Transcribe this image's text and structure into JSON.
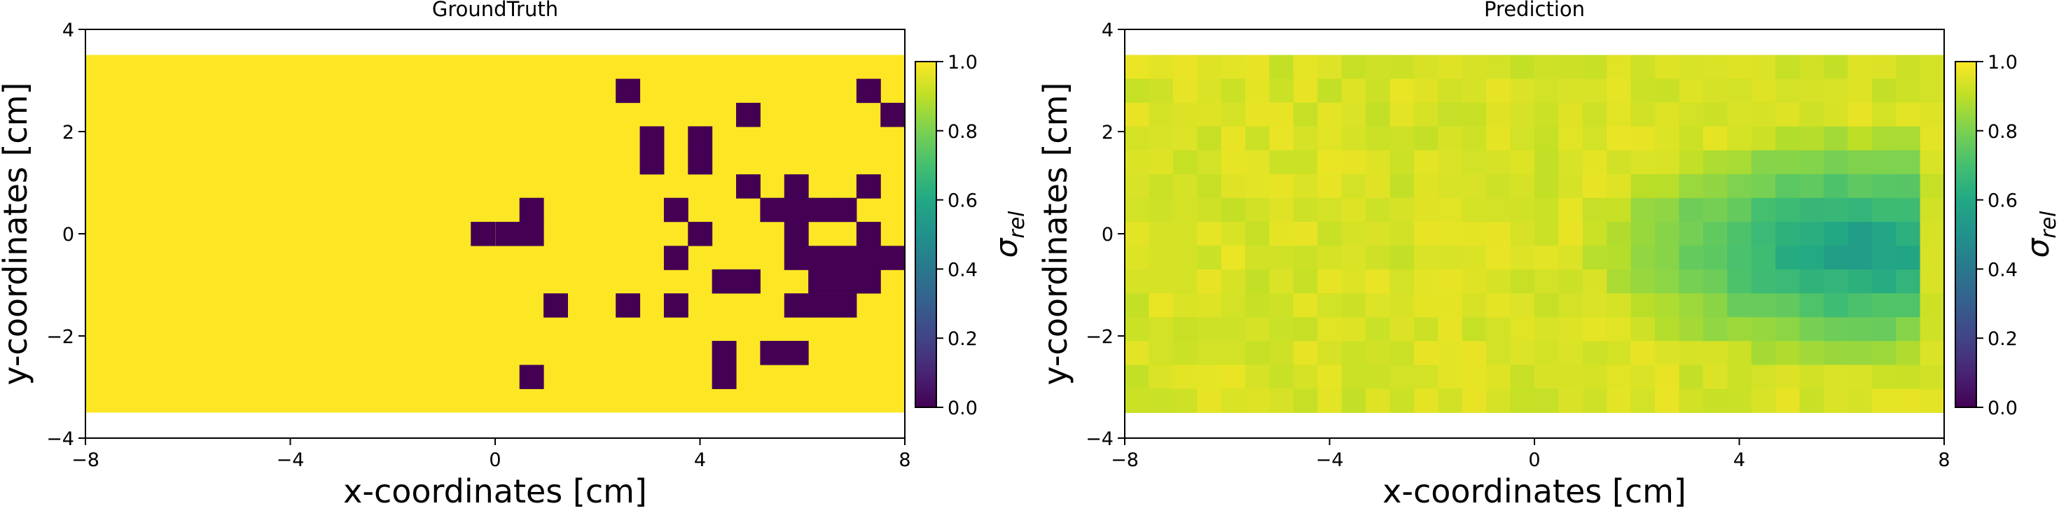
{
  "chart_data": [
    {
      "type": "heatmap",
      "title": "GroundTruth",
      "xlabel": "x-coordinates [cm]",
      "ylabel": "y-coordinates [cm]",
      "xlim": [
        -8,
        8
      ],
      "ylim": [
        -4,
        4
      ],
      "xticks": [
        "−8",
        "−4",
        "0",
        "4",
        "8"
      ],
      "yticks": [
        "−4",
        "−2",
        "0",
        "2",
        "4"
      ],
      "extent": {
        "x": [
          -8,
          8
        ],
        "y": [
          -3.5,
          3.5
        ]
      },
      "grid_cols": 34,
      "grid_rows": 15,
      "colormap": "viridis",
      "colorbar": {
        "label": "σrel",
        "range": [
          0,
          1
        ],
        "ticks": [
          "0.0",
          "0.2",
          "0.4",
          "0.6",
          "0.8",
          "1.0"
        ]
      },
      "background_value": 1.0,
      "cells": [
        {
          "x": 2.59,
          "y": 2.8,
          "value": 0.0
        },
        {
          "x": 7.29,
          "y": 2.8,
          "value": 0.0
        },
        {
          "x": 4.94,
          "y": 2.33,
          "value": 0.0
        },
        {
          "x": 7.76,
          "y": 2.33,
          "value": 0.0
        },
        {
          "x": 3.06,
          "y": 1.87,
          "value": 0.0
        },
        {
          "x": 4.0,
          "y": 1.87,
          "value": 0.0
        },
        {
          "x": 3.06,
          "y": 1.4,
          "value": 0.0
        },
        {
          "x": 4.0,
          "y": 1.4,
          "value": 0.0
        },
        {
          "x": 4.94,
          "y": 0.93,
          "value": 0.0
        },
        {
          "x": 5.88,
          "y": 0.93,
          "value": 0.0
        },
        {
          "x": 7.29,
          "y": 0.93,
          "value": 0.0
        },
        {
          "x": 0.71,
          "y": 0.47,
          "value": 0.0
        },
        {
          "x": 3.53,
          "y": 0.47,
          "value": 0.0
        },
        {
          "x": 5.41,
          "y": 0.47,
          "value": 0.0
        },
        {
          "x": 5.88,
          "y": 0.47,
          "value": 0.0
        },
        {
          "x": 6.35,
          "y": 0.47,
          "value": 0.0
        },
        {
          "x": 6.82,
          "y": 0.47,
          "value": 0.0
        },
        {
          "x": -0.24,
          "y": 0.0,
          "value": 0.0
        },
        {
          "x": 0.24,
          "y": 0.0,
          "value": 0.0
        },
        {
          "x": 0.71,
          "y": 0.0,
          "value": 0.0
        },
        {
          "x": 4.0,
          "y": 0.0,
          "value": 0.0
        },
        {
          "x": 5.88,
          "y": 0.0,
          "value": 0.0
        },
        {
          "x": 7.29,
          "y": 0.0,
          "value": 0.0
        },
        {
          "x": 3.53,
          "y": -0.47,
          "value": 0.0
        },
        {
          "x": 5.88,
          "y": -0.47,
          "value": 0.0
        },
        {
          "x": 6.35,
          "y": -0.47,
          "value": 0.0
        },
        {
          "x": 6.82,
          "y": -0.47,
          "value": 0.0
        },
        {
          "x": 7.29,
          "y": -0.47,
          "value": 0.0
        },
        {
          "x": 7.76,
          "y": -0.47,
          "value": 0.0
        },
        {
          "x": 4.47,
          "y": -0.93,
          "value": 0.0
        },
        {
          "x": 4.94,
          "y": -0.93,
          "value": 0.0
        },
        {
          "x": 6.35,
          "y": -0.93,
          "value": 0.0
        },
        {
          "x": 6.82,
          "y": -0.93,
          "value": 0.0
        },
        {
          "x": 7.29,
          "y": -0.93,
          "value": 0.0
        },
        {
          "x": 1.18,
          "y": -1.4,
          "value": 0.0
        },
        {
          "x": 2.59,
          "y": -1.4,
          "value": 0.0
        },
        {
          "x": 3.53,
          "y": -1.4,
          "value": 0.0
        },
        {
          "x": 5.88,
          "y": -1.4,
          "value": 0.0
        },
        {
          "x": 6.35,
          "y": -1.4,
          "value": 0.0
        },
        {
          "x": 6.82,
          "y": -1.4,
          "value": 0.0
        },
        {
          "x": 4.47,
          "y": -2.33,
          "value": 0.0
        },
        {
          "x": 5.41,
          "y": -2.33,
          "value": 0.0
        },
        {
          "x": 5.88,
          "y": -2.33,
          "value": 0.0
        },
        {
          "x": 0.71,
          "y": -2.8,
          "value": 0.0
        },
        {
          "x": 4.47,
          "y": -2.8,
          "value": 0.0
        }
      ]
    },
    {
      "type": "heatmap",
      "title": "Prediction",
      "xlabel": "x-coordinates [cm]",
      "ylabel": "y-coordinates [cm]",
      "xlim": [
        -8,
        8
      ],
      "ylim": [
        -4,
        4
      ],
      "xticks": [
        "−8",
        "−4",
        "0",
        "4",
        "8"
      ],
      "yticks": [
        "−4",
        "−2",
        "0",
        "2",
        "4"
      ],
      "extent": {
        "x": [
          -8,
          8
        ],
        "y": [
          -3.5,
          3.5
        ]
      },
      "grid_cols": 34,
      "grid_rows": 15,
      "colormap": "viridis",
      "colorbar": {
        "label": "σrel",
        "range": [
          0,
          1
        ],
        "ticks": [
          "0.0",
          "0.2",
          "0.4",
          "0.6",
          "0.8",
          "1.0"
        ]
      },
      "field_description_estimated": {
        "background_value": 0.97,
        "low_region_center": {
          "x": 6.3,
          "y": -0.3
        },
        "low_region_min_value": 0.55,
        "low_region_x_span": [
          0.5,
          7.0
        ],
        "low_region_y_span": [
          -2.8,
          2.6
        ]
      }
    }
  ]
}
